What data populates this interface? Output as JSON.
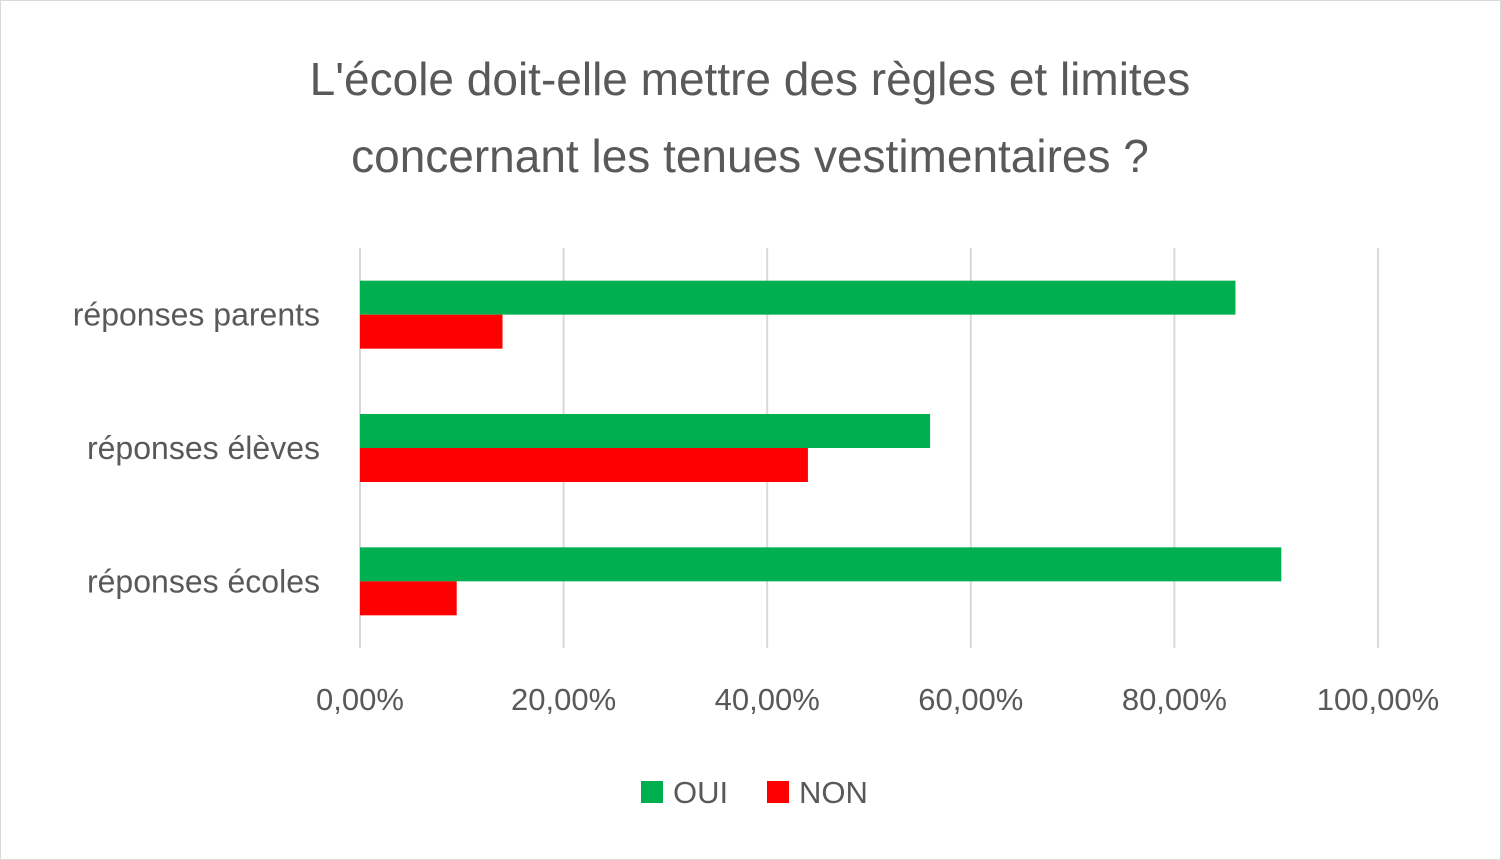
{
  "chart_data": {
    "type": "bar",
    "orientation": "horizontal",
    "title_lines": [
      "L'école doit-elle mettre des règles et limites",
      "concernant les tenues vestimentaires ?"
    ],
    "categories": [
      "réponses parents",
      "réponses élèves",
      "réponses écoles"
    ],
    "series": [
      {
        "name": "OUI",
        "color": "#00b050",
        "values": [
          0.86,
          0.56,
          0.905
        ]
      },
      {
        "name": "NON",
        "color": "#ff0000",
        "values": [
          0.14,
          0.44,
          0.095
        ]
      }
    ],
    "xlim": [
      0,
      1
    ],
    "x_ticks": [
      0,
      0.2,
      0.4,
      0.6,
      0.8,
      1.0
    ],
    "x_tick_labels": [
      "0,00%",
      "20,00%",
      "40,00%",
      "60,00%",
      "80,00%",
      "100,00%"
    ],
    "grid": true,
    "gridline_color": "#d9d9d9",
    "legend_position": "bottom"
  }
}
